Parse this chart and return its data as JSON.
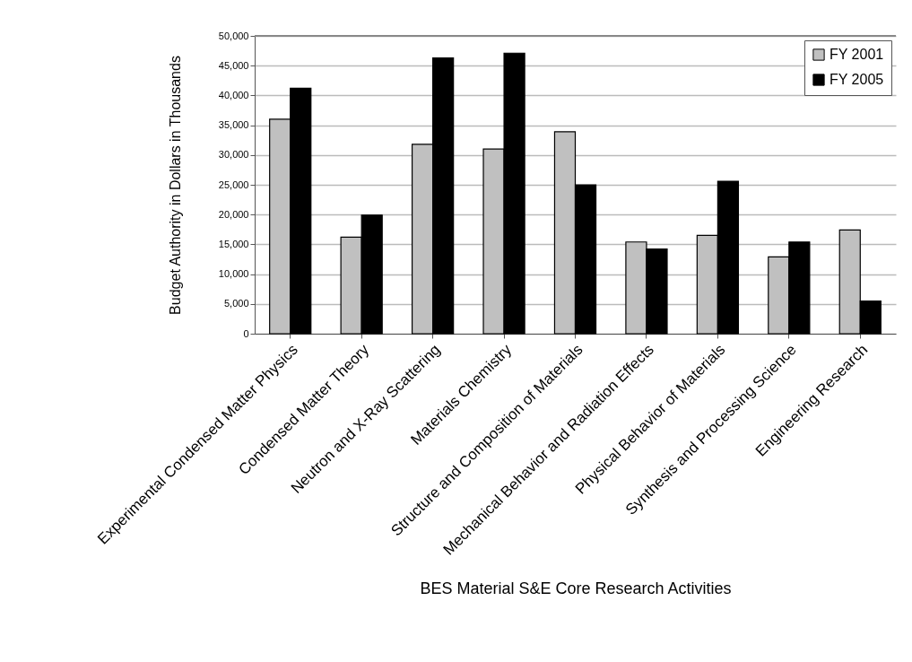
{
  "chart_data": {
    "type": "bar",
    "xlabel": "BES Material S&E Core Research Activities",
    "ylabel": "Budget Authority in Dollars in Thousands",
    "categories": [
      "Experimental Condensed Matter Physics",
      "Condensed Matter Theory",
      "Neutron and X-Ray Scattering",
      "Materials Chemistry",
      "Structure and Composition of Materials",
      "Mechanical Behavior and Radiation Effects",
      "Physical Behavior of Materials",
      "Synthesis and Processing Science",
      "Engineering Research"
    ],
    "series": [
      {
        "name": "FY 2001",
        "color": "#c0c0c0",
        "values": [
          36000,
          16200,
          31800,
          31000,
          33900,
          15400,
          16500,
          12900,
          17400
        ]
      },
      {
        "name": "FY 2005",
        "color": "#000000",
        "values": [
          41200,
          19900,
          46300,
          47100,
          25000,
          14200,
          25600,
          15400,
          5500
        ]
      }
    ],
    "ylim": [
      0,
      50000
    ],
    "yticks": [
      0,
      {
        "value": 5000,
        "label": "5,000"
      },
      {
        "value": 10000,
        "label": "10,000"
      },
      {
        "value": 15000,
        "label": "15,000"
      },
      {
        "value": 20000,
        "label": "20,000"
      },
      {
        "value": 25000,
        "label": "25,000"
      },
      {
        "value": 30000,
        "label": "30,000"
      },
      {
        "value": 35000,
        "label": "35,000"
      },
      {
        "value": 40000,
        "label": "40,000"
      },
      {
        "value": 45000,
        "label": "45,000"
      },
      {
        "value": 50000,
        "label": "50,000"
      }
    ],
    "grid": "y",
    "legend": "top right"
  }
}
